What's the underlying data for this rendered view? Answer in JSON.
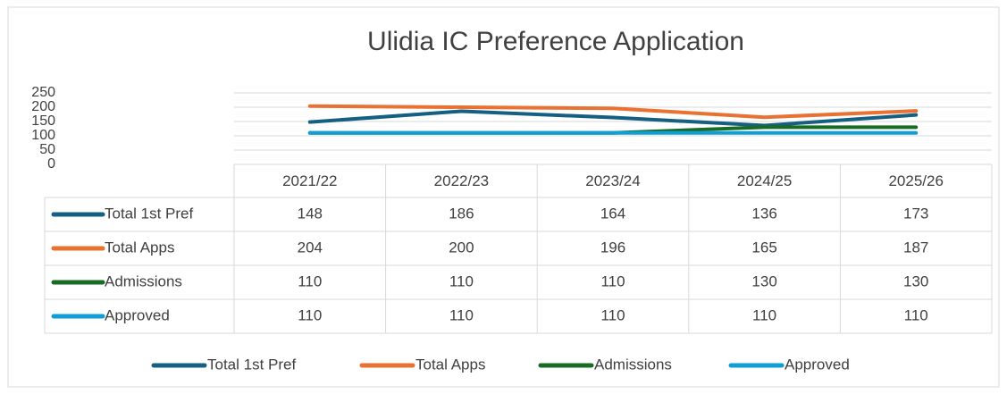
{
  "chart_data": {
    "type": "line",
    "title": "Ulidia IC Preference Application",
    "categories": [
      "2021/22",
      "2022/23",
      "2023/24",
      "2024/25",
      "2025/26"
    ],
    "series": [
      {
        "name": "Total 1st Pref",
        "color": "#156082",
        "values": [
          148,
          186,
          164,
          136,
          173
        ]
      },
      {
        "name": "Total Apps",
        "color": "#e97132",
        "values": [
          204,
          200,
          196,
          165,
          187
        ]
      },
      {
        "name": "Admissions",
        "color": "#196b24",
        "values": [
          110,
          110,
          110,
          130,
          130
        ]
      },
      {
        "name": "Approved",
        "color": "#0f9ed5",
        "values": [
          110,
          110,
          110,
          110,
          110
        ]
      }
    ],
    "ylim": [
      0,
      250
    ],
    "yticks": [
      0,
      50,
      100,
      150,
      200,
      250
    ],
    "grid": true,
    "legend": "bottom"
  }
}
